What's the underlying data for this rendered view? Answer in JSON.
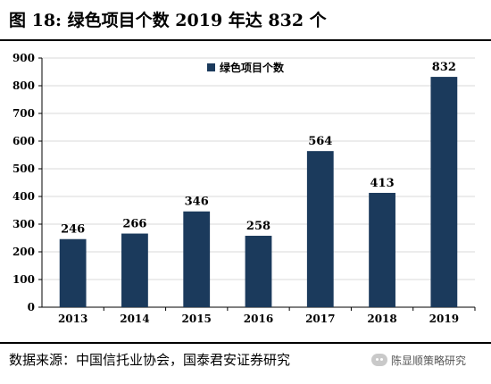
{
  "figure": {
    "title": "图 18:  绿色项目个数 2019 年达 832 个",
    "source": "数据来源：中国信托业协会，国泰君安证券研究",
    "watermark": "陈显顺策略研究",
    "watermark_icon": "wechat-icon"
  },
  "chart_data": {
    "type": "bar",
    "categories": [
      "2013",
      "2014",
      "2015",
      "2016",
      "2017",
      "2018",
      "2019"
    ],
    "series": [
      {
        "name": "绿色项目个数",
        "values": [
          246,
          266,
          346,
          258,
          564,
          413,
          832
        ]
      }
    ],
    "data_labels": [
      "246",
      "266",
      "346",
      "258",
      "564",
      "413",
      "832"
    ],
    "yticks": [
      "0",
      "100",
      "200",
      "300",
      "400",
      "500",
      "600",
      "700",
      "800",
      "900"
    ],
    "ylim": [
      0,
      900
    ],
    "xlabel": "",
    "ylabel": "",
    "grid": true,
    "legend_position": "top-left",
    "colors": {
      "bar": "#1b3a5c",
      "grid": "#d9d9d9",
      "axis": "#000000"
    }
  }
}
